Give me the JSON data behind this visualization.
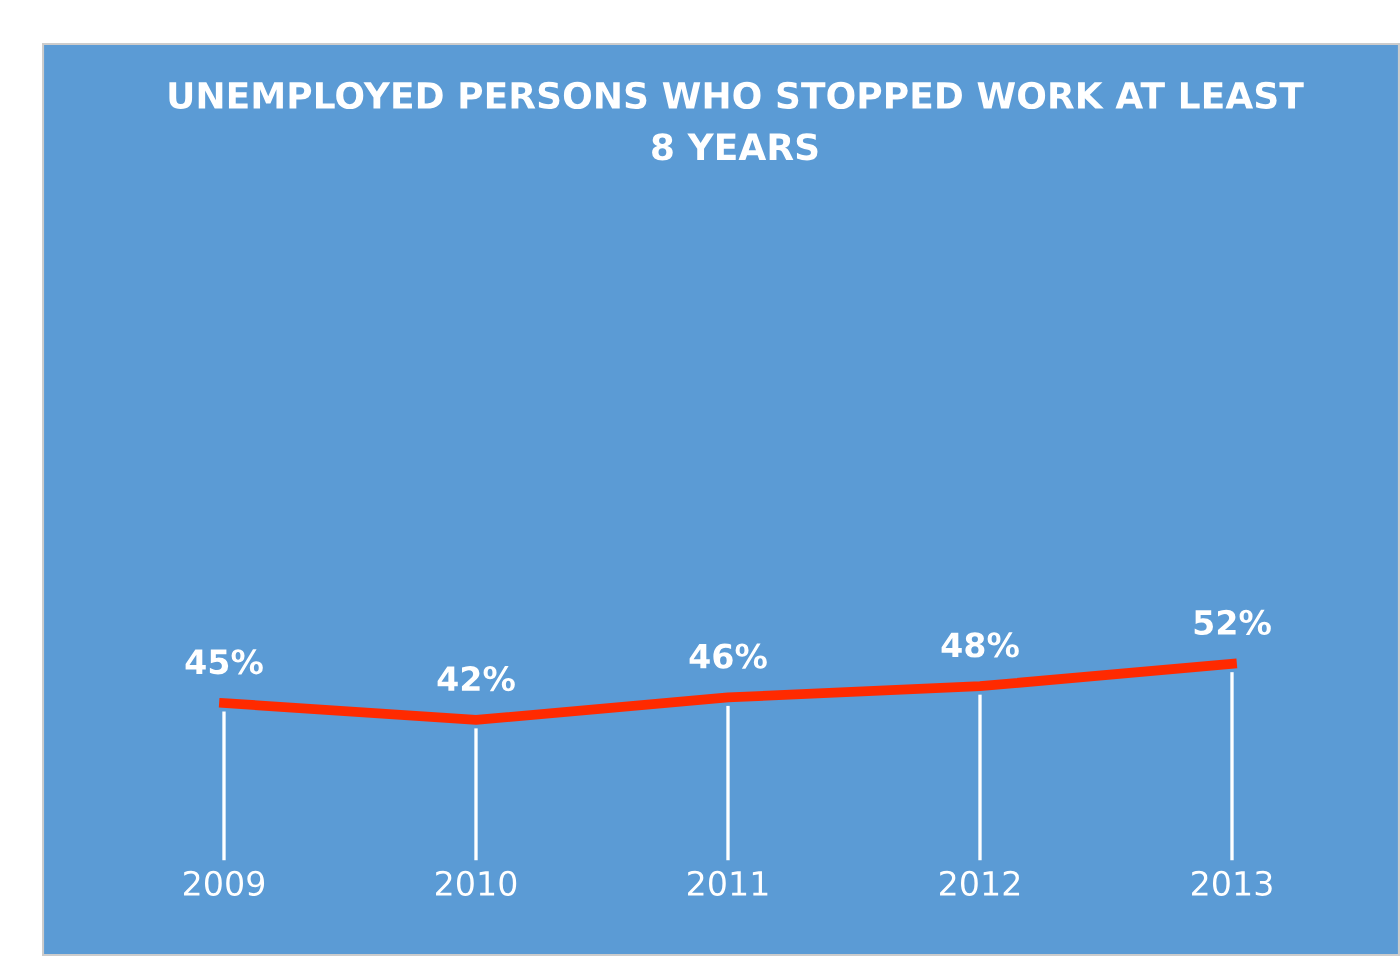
{
  "chart_data": {
    "type": "line",
    "title": "UNEMPLOYED PERSONS WHO STOPPED WORK AT LEAST\n8 YEARS",
    "categories": [
      "2009",
      "2010",
      "2011",
      "2012",
      "2013"
    ],
    "series": [
      {
        "color": "#ff2a00",
        "values": [
          45,
          42,
          46,
          48,
          52
        ],
        "value_labels": [
          "45%",
          "42%",
          "46%",
          "48%",
          "52%"
        ]
      }
    ],
    "tick_labels": "x",
    "grid": "x",
    "line_style": "solid"
  }
}
